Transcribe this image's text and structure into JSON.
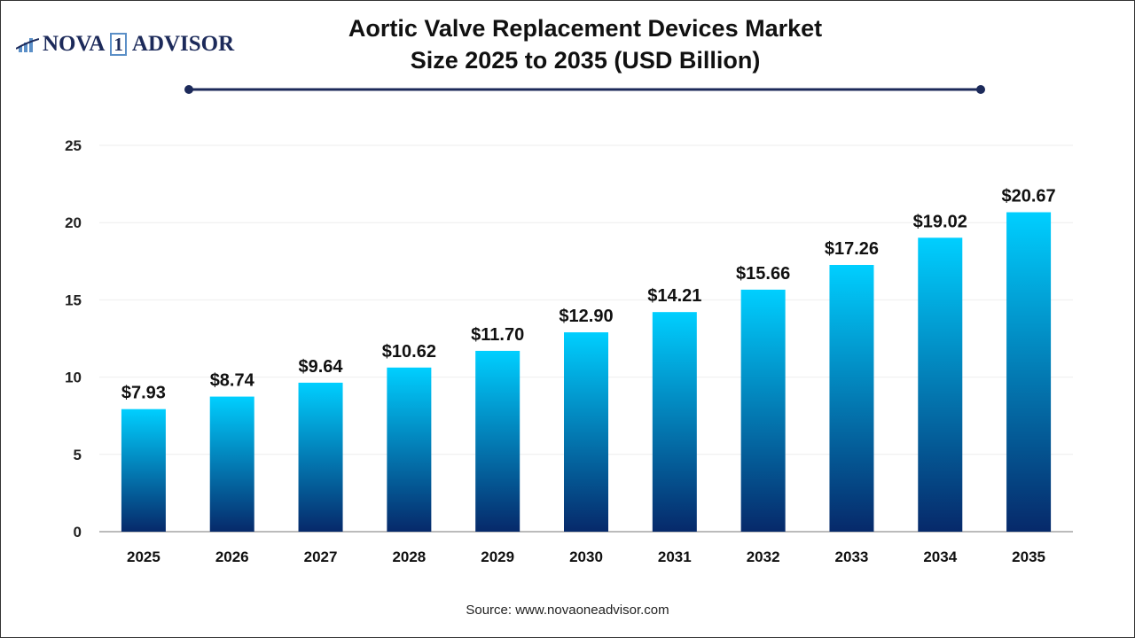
{
  "logo": {
    "text_left": "NOVA",
    "text_one": "1",
    "text_right": "ADVISOR"
  },
  "chart_data": {
    "type": "bar",
    "title": "Aortic Valve Replacement Devices Market Size 2025 to 2035 (USD Billion)",
    "title_line1": "Aortic Valve Replacement Devices Market",
    "title_line2": "Size 2025 to 2035 (USD Billion)",
    "categories": [
      "2025",
      "2026",
      "2027",
      "2028",
      "2029",
      "2030",
      "2031",
      "2032",
      "2033",
      "2034",
      "2035"
    ],
    "values": [
      7.93,
      8.74,
      9.64,
      10.62,
      11.7,
      12.9,
      14.21,
      15.66,
      17.26,
      19.02,
      20.67
    ],
    "data_labels": [
      "$7.93",
      "$8.74",
      "$9.64",
      "$10.62",
      "$11.70",
      "$12.90",
      "$14.21",
      "$15.66",
      "$17.26",
      "$19.02",
      "$20.67"
    ],
    "ylim": [
      0,
      25
    ],
    "yticks": [
      0,
      5,
      10,
      15,
      20,
      25
    ],
    "grid": true,
    "xlabel": "",
    "ylabel": "",
    "colors": {
      "bar_top": "#00cfff",
      "bar_bottom": "#06296a",
      "title_line": "#1c2a5a"
    }
  },
  "source": "Source: www.novaoneadvisor.com"
}
